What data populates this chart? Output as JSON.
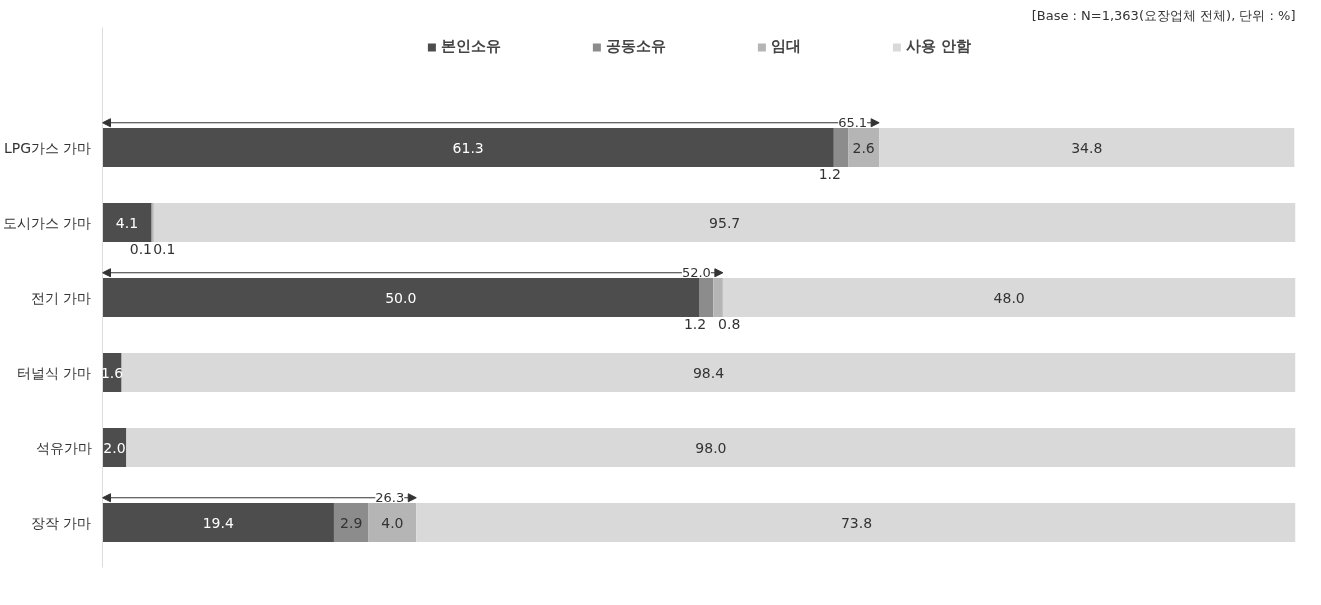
{
  "chart_data": {
    "type": "bar",
    "orientation": "horizontal",
    "stacked": true,
    "categories": [
      "LPG가스 가마",
      "도시가스 가마",
      "전기 가마",
      "터널식 가마",
      "석유가마",
      "장작 가마"
    ],
    "series": [
      {
        "name": "본인소유",
        "color": "#4d4d4d",
        "values": [
          61.3,
          4.1,
          50.0,
          1.6,
          2.0,
          19.4
        ],
        "value_labels": [
          "61.3",
          "4.1",
          "50.0",
          "1.6",
          "2.0",
          "19.4"
        ]
      },
      {
        "name": "공동소유",
        "color": "#8c8c8c",
        "values": [
          1.2,
          0.1,
          1.2,
          0,
          0,
          2.9
        ],
        "value_labels": [
          "1.2",
          "0.1",
          "1.2",
          null,
          null,
          "2.9"
        ]
      },
      {
        "name": "임대",
        "color": "#b5b5b5",
        "values": [
          2.6,
          0.1,
          0.8,
          0,
          0,
          4.0
        ],
        "value_labels": [
          "2.6",
          "0.1",
          "0.8",
          null,
          null,
          "4.0"
        ]
      },
      {
        "name": "사용 안함",
        "color": "#d9d9d9",
        "values": [
          34.8,
          95.7,
          48.0,
          98.4,
          98.0,
          73.8
        ],
        "value_labels": [
          "34.8",
          "95.7",
          "48.0",
          "98.4",
          "98.0",
          "73.8"
        ]
      }
    ],
    "xlim": [
      0,
      100
    ],
    "legend": "top",
    "annotations": [
      "[Base : N=1,363(요장업체 전체), 단위 : %]",
      {
        "text": "65.1",
        "x": 65.1,
        "y": "LPG가스 가마"
      },
      {
        "text": "52.0",
        "x": 52.0,
        "y": "전기 가마"
      },
      {
        "text": "26.3",
        "x": 26.3,
        "y": "장작 가마"
      }
    ]
  }
}
